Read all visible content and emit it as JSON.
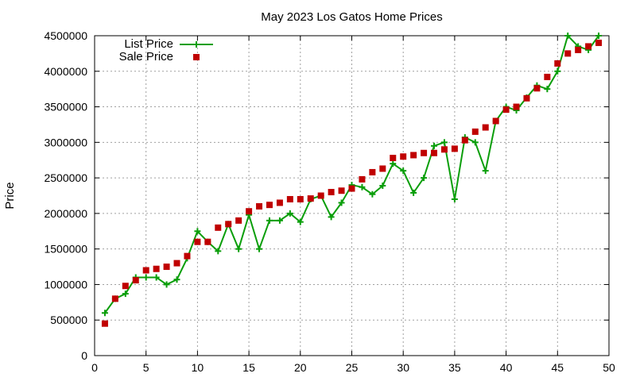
{
  "chart_data": {
    "type": "line",
    "title": "May 2023 Los Gatos Home Prices",
    "xlabel": "",
    "ylabel": "Price",
    "xlim": [
      0,
      50
    ],
    "ylim": [
      0,
      4500000
    ],
    "x_ticks": [
      0,
      5,
      10,
      15,
      20,
      25,
      30,
      35,
      40,
      45,
      50
    ],
    "y_ticks": [
      0,
      500000,
      1000000,
      1500000,
      2000000,
      2500000,
      3000000,
      3500000,
      4000000,
      4500000
    ],
    "x_tick_labels": [
      "0",
      "5",
      "10",
      "15",
      "20",
      "25",
      "30",
      "35",
      "40",
      "45",
      "50"
    ],
    "y_tick_labels": [
      "0",
      "500000",
      "1000000",
      "1500000",
      "2000000",
      "2500000",
      "3000000",
      "3500000",
      "4000000",
      "4500000"
    ],
    "grid": true,
    "legend_position": "top-left",
    "x": [
      1,
      2,
      3,
      4,
      5,
      6,
      7,
      8,
      9,
      10,
      11,
      12,
      13,
      14,
      15,
      16,
      17,
      18,
      19,
      20,
      21,
      22,
      23,
      24,
      25,
      26,
      27,
      28,
      29,
      30,
      31,
      32,
      33,
      34,
      35,
      36,
      37,
      38,
      39,
      40,
      41,
      42,
      43,
      44,
      45,
      46,
      47,
      48,
      49
    ],
    "series": [
      {
        "name": "List Price",
        "style": "line+cross",
        "color": "#0a9e0a",
        "values": [
          600000,
          800000,
          870000,
          1100000,
          1100000,
          1100000,
          1000000,
          1070000,
          1370000,
          1750000,
          1600000,
          1470000,
          1850000,
          1500000,
          1980000,
          1500000,
          1900000,
          1900000,
          2000000,
          1880000,
          2200000,
          2250000,
          1950000,
          2150000,
          2400000,
          2370000,
          2270000,
          2390000,
          2700000,
          2600000,
          2290000,
          2500000,
          2950000,
          3000000,
          2200000,
          3070000,
          3000000,
          2600000,
          3300000,
          3500000,
          3450000,
          3630000,
          3800000,
          3750000,
          4000000,
          4500000,
          4350000,
          4300000,
          4500000
        ]
      },
      {
        "name": "Sale Price",
        "style": "square-markers",
        "color": "#c00000",
        "values": [
          450000,
          800000,
          980000,
          1060000,
          1200000,
          1220000,
          1250000,
          1300000,
          1400000,
          1600000,
          1600000,
          1800000,
          1850000,
          1900000,
          2030000,
          2100000,
          2120000,
          2150000,
          2200000,
          2200000,
          2210000,
          2250000,
          2300000,
          2320000,
          2350000,
          2480000,
          2580000,
          2630000,
          2780000,
          2800000,
          2820000,
          2850000,
          2850000,
          2900000,
          2910000,
          3030000,
          3150000,
          3210000,
          3300000,
          3460000,
          3500000,
          3620000,
          3760000,
          3920000,
          4110000,
          4250000,
          4300000,
          4350000,
          4400000
        ]
      }
    ]
  }
}
